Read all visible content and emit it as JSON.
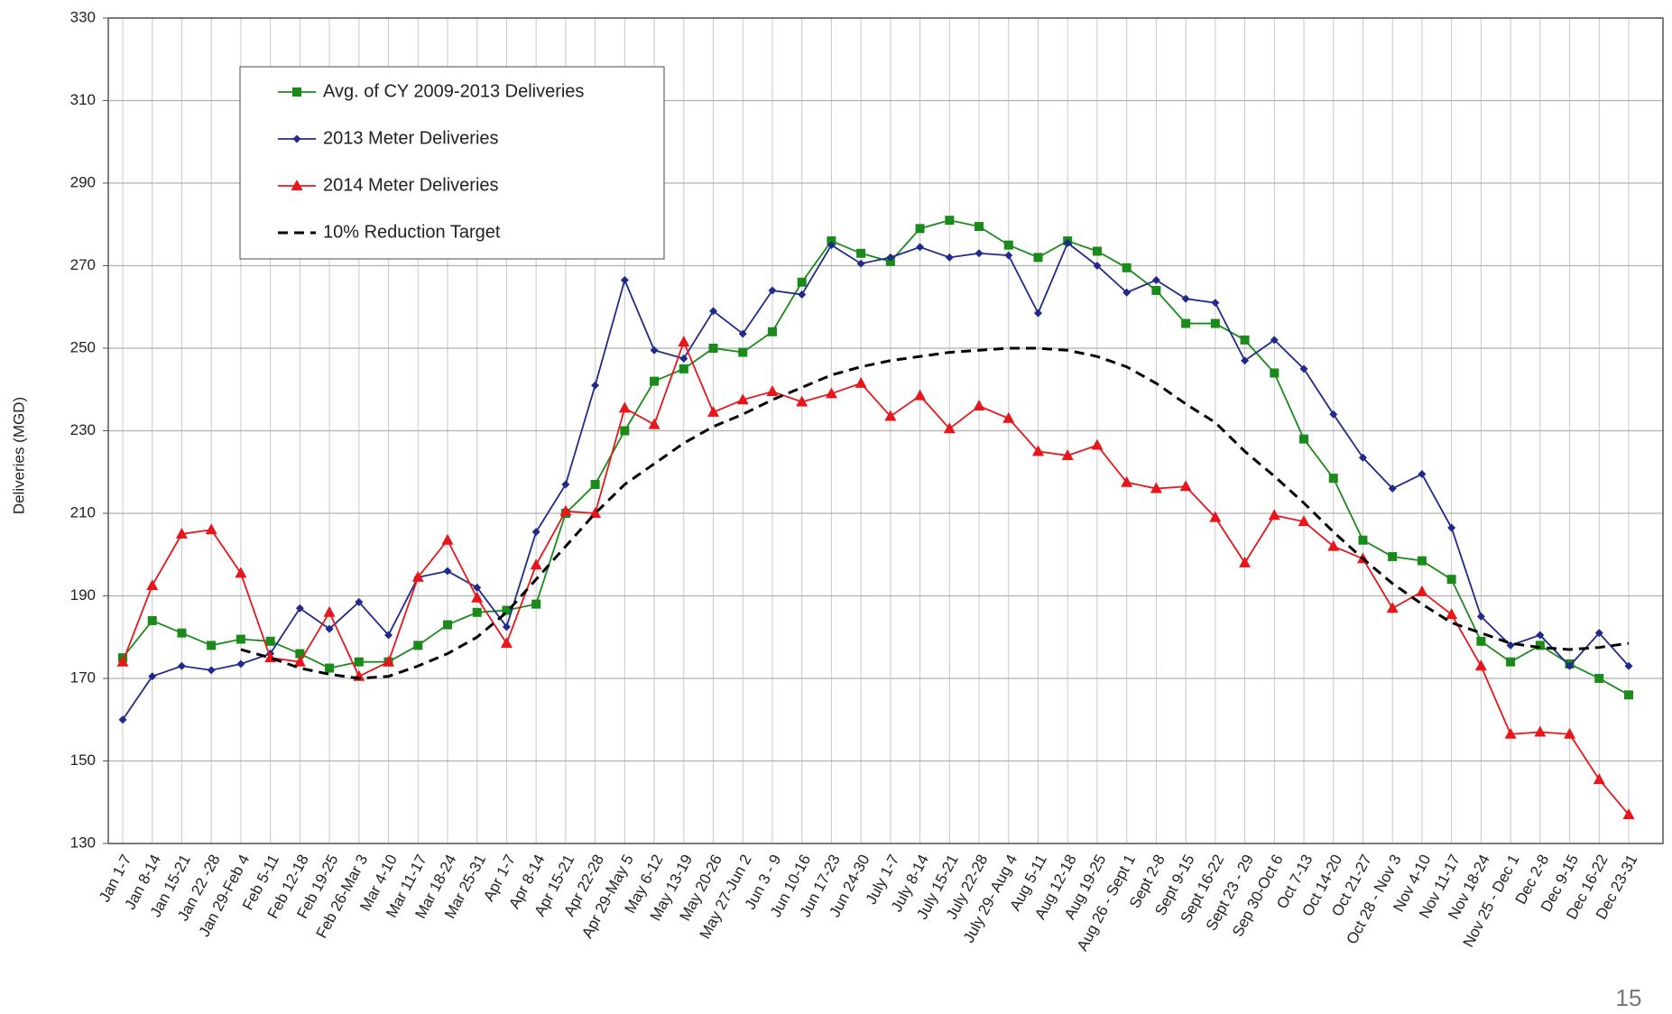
{
  "chart_data": {
    "type": "line",
    "y_label": "Deliveries (MGD)",
    "page_number": "15",
    "categories": [
      "Jan 1-7",
      "Jan 8-14",
      "Jan 15-21",
      "Jan 22 -28",
      "Jan 29-Feb 4",
      "Feb 5-11",
      "Feb 12-18",
      "Feb 19-25",
      "Feb 26-Mar 3",
      "Mar 4-10",
      "Mar 11-17",
      "Mar 18-24",
      "Mar 25-31",
      "Apr 1-7",
      "Apr 8-14",
      "Apr 15-21",
      "Apr 22-28",
      "Apr 29-May 5",
      "May 6-12",
      "May 13-19",
      "May 20-26",
      "May 27-Jun 2",
      "Jun 3 - 9",
      "Jun 10-16",
      "Jun 17-23",
      "Jun 24-30",
      "July 1-7",
      "July 8-14",
      "July 15-21",
      "July 22-28",
      "July 29- Aug 4",
      "Aug 5-11",
      "Aug 12-18",
      "Aug 19-25",
      "Aug 26 - Sept 1",
      "Sept 2-8",
      "Sept 9-15",
      "Sept 16-22",
      "Sept 23 - 29",
      "Sep 30-Oct 6",
      "Oct 7-13",
      "Oct 14-20",
      "Oct 21-27",
      "Oct 28 - Nov 3",
      "Nov 4-10",
      "Nov 11-17",
      "Nov 18-24",
      "Nov 25 - Dec 1",
      "Dec 2-8",
      "Dec 9-15",
      "Dec 16-22",
      "Dec 23-31"
    ],
    "series": [
      {
        "name": "Avg. of CY 2009-2013 Deliveries",
        "color": "#1a8a1a",
        "marker": "square",
        "values": [
          175,
          184,
          181,
          178,
          179.5,
          179,
          176,
          172.5,
          174,
          174,
          178,
          183,
          186,
          186.5,
          188,
          210,
          217,
          230,
          242,
          245,
          250,
          249,
          254,
          266,
          276,
          273,
          271,
          279,
          281,
          279.5,
          275,
          272,
          276,
          273.5,
          269.5,
          264,
          256,
          256,
          252,
          244,
          228,
          218.5,
          203.5,
          199.5,
          198.5,
          194,
          179,
          174,
          178,
          173.5,
          170,
          166
        ]
      },
      {
        "name": "2013 Meter Deliveries",
        "color": "#1f2a8c",
        "marker": "diamond",
        "values": [
          160,
          170.5,
          173,
          172,
          173.5,
          176,
          187,
          182,
          188.5,
          180.5,
          194.5,
          196,
          192,
          182.5,
          205.5,
          217,
          241,
          266.5,
          249.5,
          247.5,
          259,
          253.5,
          264,
          263,
          275,
          270.5,
          272,
          274.5,
          272,
          273,
          272.5,
          258.5,
          275.5,
          270,
          263.5,
          266.5,
          262,
          261,
          247,
          252,
          245,
          234,
          223.5,
          216,
          219.5,
          206.5,
          185,
          178,
          180.5,
          173,
          181,
          173
        ]
      },
      {
        "name": "2014  Meter Deliveries",
        "color": "#e8161b",
        "marker": "triangle",
        "values": [
          174,
          192.5,
          205,
          206,
          195.5,
          175,
          174,
          186,
          170.5,
          174,
          194.5,
          203.5,
          189.5,
          178.5,
          197.5,
          210.5,
          210,
          235.5,
          231.5,
          251.5,
          234.5,
          237.5,
          239.5,
          237,
          239,
          241.5,
          233.5,
          238.5,
          230.5,
          236,
          233,
          225,
          224,
          226.5,
          217.5,
          216,
          216.5,
          209,
          198,
          209.5,
          208,
          202,
          199,
          187,
          191,
          185.5,
          173,
          156.5,
          157,
          156.5,
          145.5,
          137
        ]
      },
      {
        "name": "10% Reduction Target",
        "color": "#000000",
        "marker": "none",
        "dash": true,
        "values": [
          null,
          null,
          null,
          null,
          177,
          175,
          172.5,
          171,
          170,
          170.5,
          173,
          176,
          180,
          186,
          194,
          202,
          210,
          217,
          222,
          227,
          231,
          234,
          237.5,
          240.5,
          243.5,
          245.5,
          247,
          248,
          249,
          249.5,
          250,
          250,
          249.5,
          248,
          245.5,
          241.5,
          236.5,
          232,
          225,
          219,
          212.5,
          205.5,
          199,
          193,
          188,
          183.5,
          181,
          178.5,
          177.5,
          177,
          177.5,
          178.5
        ]
      }
    ],
    "ylim": [
      130,
      330
    ],
    "yticks": [
      130,
      150,
      170,
      190,
      210,
      230,
      250,
      270,
      290,
      310,
      330
    ],
    "grid": true
  }
}
